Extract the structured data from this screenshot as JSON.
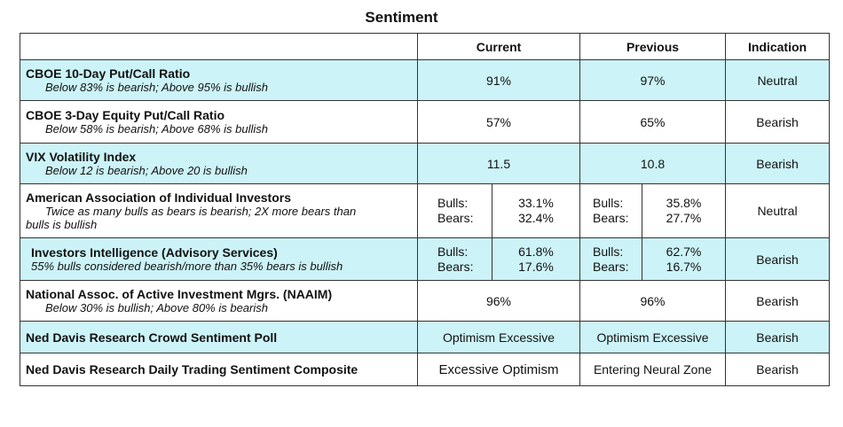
{
  "title": "Sentiment",
  "headers": {
    "indicator": "",
    "current": "Current",
    "previous": "Previous",
    "indication": "Indication"
  },
  "rows": {
    "r1": {
      "label": "CBOE 10-Day Put/Call Ratio",
      "desc": "Below 83% is bearish; Above 95% is bullish",
      "current": "91%",
      "previous": "97%",
      "indication": "Neutral"
    },
    "r2": {
      "label": "CBOE 3-Day Equity Put/Call Ratio",
      "desc": "Below 58% is bearish; Above 68% is bullish",
      "current": "57%",
      "previous": "65%",
      "indication": "Bearish"
    },
    "r3": {
      "label": "VIX Volatility Index",
      "desc": "Below 12 is bearish; Above 20 is bullish",
      "current": "11.5",
      "previous": "10.8",
      "indication": "Bearish"
    },
    "r4": {
      "label": "American Association of Individual Investors",
      "desc_line1": "Twice as many bulls as bears is bearish; 2X more bears than",
      "desc_line2": "bulls is bullish",
      "cur_bulls_label": "Bulls:",
      "cur_bears_label": "Bears:",
      "cur_bulls": "33.1%",
      "cur_bears": "32.4%",
      "prev_bulls_label": "Bulls:",
      "prev_bears_label": "Bears:",
      "prev_bulls": "35.8%",
      "prev_bears": "27.7%",
      "indication": "Neutral"
    },
    "r5": {
      "label": "Investors Intelligence (Advisory Services)",
      "desc": "55% bulls considered bearish/more than 35% bears is bullish",
      "cur_bulls_label": "Bulls:",
      "cur_bears_label": "Bears:",
      "cur_bulls": "61.8%",
      "cur_bears": "17.6%",
      "prev_bulls_label": "Bulls:",
      "prev_bears_label": "Bears:",
      "prev_bulls": "62.7%",
      "prev_bears": "16.7%",
      "indication": "Bearish"
    },
    "r6": {
      "label": "National Assoc. of Active Investment Mgrs. (NAAIM)",
      "desc": "Below 30% is bullish; Above 80% is bearish",
      "current": "96%",
      "previous": "96%",
      "indication": "Bearish"
    },
    "r7": {
      "label": "Ned Davis Research Crowd Sentiment Poll",
      "current": "Optimism Excessive",
      "previous": "Optimism Excessive",
      "indication": "Bearish"
    },
    "r8": {
      "label": "Ned Davis Research Daily Trading Sentiment Composite",
      "current": "Excessive Optimism",
      "previous": "Entering Neural Zone",
      "indication": "Bearish"
    }
  },
  "colors": {
    "highlight_row": "#ccf3f7",
    "border": "#333333"
  }
}
